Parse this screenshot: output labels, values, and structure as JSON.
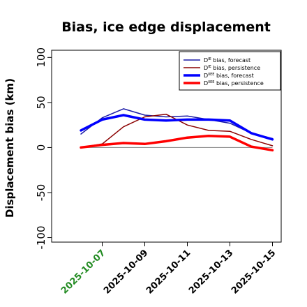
{
  "chart_data": {
    "type": "line",
    "title": "Bias, ice edge displacement",
    "xlabel": "",
    "ylabel": "Displacement bias (km)",
    "x": [
      "2025-10-06",
      "2025-10-07",
      "2025-10-08",
      "2025-10-09",
      "2025-10-10",
      "2025-10-11",
      "2025-10-12",
      "2025-10-13",
      "2025-10-14",
      "2025-10-15"
    ],
    "x_tick_labels": [
      "2025-10-07",
      "2025-10-09",
      "2025-10-11",
      "2025-10-13",
      "2025-10-15"
    ],
    "highlighted_x_tick": "2025-10-07",
    "highlight_color": "#228B22",
    "ylim": [
      -105,
      108
    ],
    "y_ticks": [
      -100,
      -50,
      0,
      50,
      100
    ],
    "zero_line": true,
    "grid": false,
    "legend_position": "top-right",
    "series": [
      {
        "name": "D^IE bias, forecast",
        "sup": "IE",
        "label": " bias, forecast",
        "color": "#1a1aa6",
        "width": 1.5,
        "values": [
          15,
          33,
          43,
          36,
          34,
          35,
          31,
          27,
          16,
          10
        ]
      },
      {
        "name": "D^IE bias, persistence",
        "sup": "IE",
        "label": " bias, persistence",
        "color": "#8b0000",
        "width": 1.5,
        "values": [
          0,
          4,
          23,
          34,
          37,
          25,
          19,
          18,
          9,
          2
        ]
      },
      {
        "name": "D^IIEE bias, forecast",
        "sup": "IIEE",
        "label": " bias, forecast",
        "color": "#0000ff",
        "width": 3.5,
        "values": [
          19,
          31,
          36,
          31,
          30,
          31,
          31,
          30,
          16,
          9
        ]
      },
      {
        "name": "D^IIEE bias, persistence",
        "sup": "IIEE",
        "label": " bias, persistence",
        "color": "#ff0000",
        "width": 3.5,
        "values": [
          0,
          3,
          5,
          4,
          7,
          11,
          13,
          12,
          1,
          -3
        ]
      }
    ]
  }
}
